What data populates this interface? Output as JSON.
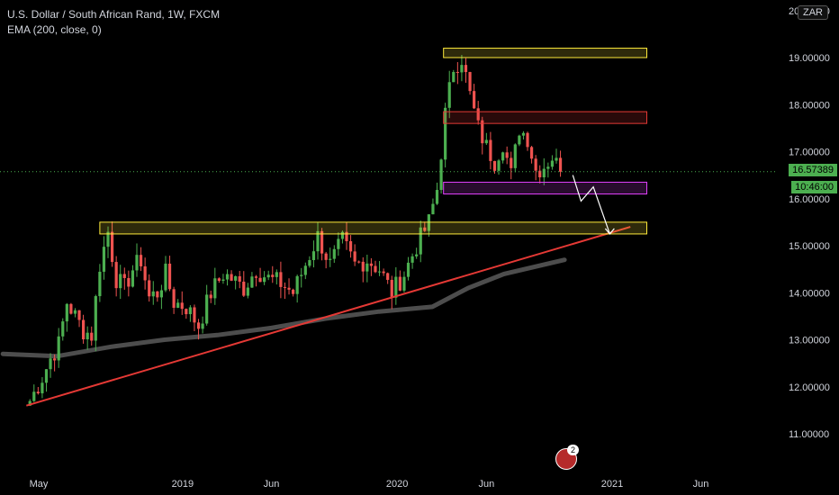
{
  "header": {
    "symbol_line": "U.S. Dollar / South African Rand, 1W, FXCM",
    "indicator_line": "EMA (200, close, 0)"
  },
  "currency_badge": "ZAR",
  "price_label": "16.57389",
  "countdown_label": "10:46:00",
  "events_count": "2",
  "colors": {
    "up": "#4caf50",
    "down": "#ef5350",
    "ema": "#555555",
    "trendline": "#e53935",
    "zone_yellow": "#ffeb3b",
    "zone_red": "#e53935",
    "zone_magenta": "#e040fb",
    "price_line": "#4caf50"
  },
  "chart_data": {
    "type": "candlestick",
    "title": "U.S. Dollar / South African Rand, 1W, FXCM",
    "y_axis": {
      "range": [
        10.5,
        20.3
      ],
      "ticks": [
        "11.00000",
        "12.00000",
        "13.00000",
        "14.00000",
        "15.00000",
        "16.00000",
        "17.00000",
        "18.00000",
        "19.00000",
        "20.00000"
      ]
    },
    "x_axis": {
      "ticks": [
        "May",
        "2019",
        "Jun",
        "2020",
        "Jun",
        "2021",
        "Jun"
      ]
    },
    "close_path": [
      [
        "2018-04-16",
        11.7
      ],
      [
        "2018-05-07",
        12.2
      ],
      [
        "2018-05-21",
        12.6
      ],
      [
        "2018-06-04",
        12.9
      ],
      [
        "2018-06-18",
        13.8
      ],
      [
        "2018-07-02",
        13.5
      ],
      [
        "2018-07-16",
        13.2
      ],
      [
        "2018-07-30",
        13.1
      ],
      [
        "2018-08-13",
        14.6
      ],
      [
        "2018-08-27",
        15.3
      ],
      [
        "2018-09-10",
        14.3
      ],
      [
        "2018-09-24",
        14.1
      ],
      [
        "2018-10-08",
        14.5
      ],
      [
        "2018-10-22",
        14.7
      ],
      [
        "2018-11-05",
        13.9
      ],
      [
        "2018-11-19",
        14.0
      ],
      [
        "2018-12-03",
        14.4
      ],
      [
        "2018-12-17",
        13.8
      ],
      [
        "2019-01-07",
        13.7
      ],
      [
        "2019-01-28",
        13.3
      ],
      [
        "2019-02-18",
        14.0
      ],
      [
        "2019-03-11",
        14.4
      ],
      [
        "2019-03-25",
        14.3
      ],
      [
        "2019-04-15",
        14.1
      ],
      [
        "2019-05-06",
        14.5
      ],
      [
        "2019-05-27",
        14.3
      ],
      [
        "2019-06-17",
        14.2
      ],
      [
        "2019-07-08",
        14.0
      ],
      [
        "2019-07-29",
        14.6
      ],
      [
        "2019-08-19",
        15.2
      ],
      [
        "2019-09-09",
        14.6
      ],
      [
        "2019-09-30",
        15.1
      ],
      [
        "2019-10-21",
        14.6
      ],
      [
        "2019-11-11",
        14.7
      ],
      [
        "2019-12-02",
        14.5
      ],
      [
        "2019-12-23",
        14.0
      ],
      [
        "2020-01-13",
        14.4
      ],
      [
        "2020-02-03",
        15.0
      ],
      [
        "2020-02-24",
        15.5
      ],
      [
        "2020-03-09",
        16.2
      ],
      [
        "2020-03-23",
        17.8
      ],
      [
        "2020-04-06",
        18.8
      ],
      [
        "2020-04-20",
        19.0
      ],
      [
        "2020-05-04",
        18.2
      ],
      [
        "2020-05-18",
        17.5
      ],
      [
        "2020-06-01",
        17.1
      ],
      [
        "2020-06-15",
        16.8
      ],
      [
        "2020-06-29",
        17.2
      ],
      [
        "2020-07-13",
        16.5
      ],
      [
        "2020-07-27",
        17.5
      ],
      [
        "2020-08-10",
        17.3
      ],
      [
        "2020-08-24",
        16.6
      ],
      [
        "2020-09-07",
        16.7
      ],
      [
        "2020-09-21",
        16.9
      ],
      [
        "2020-10-05",
        16.57389
      ]
    ],
    "ema_200": [
      [
        "2018-03-01",
        12.7
      ],
      [
        "2018-06-01",
        12.65
      ],
      [
        "2018-09-01",
        12.85
      ],
      [
        "2018-12-01",
        13.0
      ],
      [
        "2019-03-01",
        13.1
      ],
      [
        "2019-06-01",
        13.25
      ],
      [
        "2019-09-01",
        13.45
      ],
      [
        "2019-12-01",
        13.6
      ],
      [
        "2020-03-01",
        13.7
      ],
      [
        "2020-05-01",
        14.1
      ],
      [
        "2020-07-01",
        14.4
      ],
      [
        "2020-10-12",
        14.7
      ]
    ],
    "annotations": {
      "trendline": {
        "from": [
          "2018-04-10",
          11.6
        ],
        "to": [
          "2021-02-01",
          15.4
        ]
      },
      "zones": [
        {
          "name": "resistance-top",
          "color": "yellow",
          "from": "2020-03-20",
          "to": "2021-03-01",
          "low": 19.0,
          "high": 19.2
        },
        {
          "name": "resistance-mid",
          "color": "red",
          "from": "2020-03-20",
          "to": "2021-03-01",
          "low": 17.6,
          "high": 17.85
        },
        {
          "name": "support-current",
          "color": "magenta",
          "from": "2020-03-20",
          "to": "2021-03-01",
          "low": 16.1,
          "high": 16.35
        },
        {
          "name": "support-range",
          "color": "yellow",
          "from": "2018-08-13",
          "to": "2021-03-01",
          "low": 15.25,
          "high": 15.5
        }
      ],
      "projection_arrow": [
        [
          "2020-10-26",
          16.5
        ],
        [
          "2020-11-09",
          15.95
        ],
        [
          "2020-11-30",
          16.25
        ],
        [
          "2020-12-28",
          15.25
        ]
      ],
      "current_price": 16.57389
    },
    "legend_position": "top-left",
    "grid": false
  }
}
